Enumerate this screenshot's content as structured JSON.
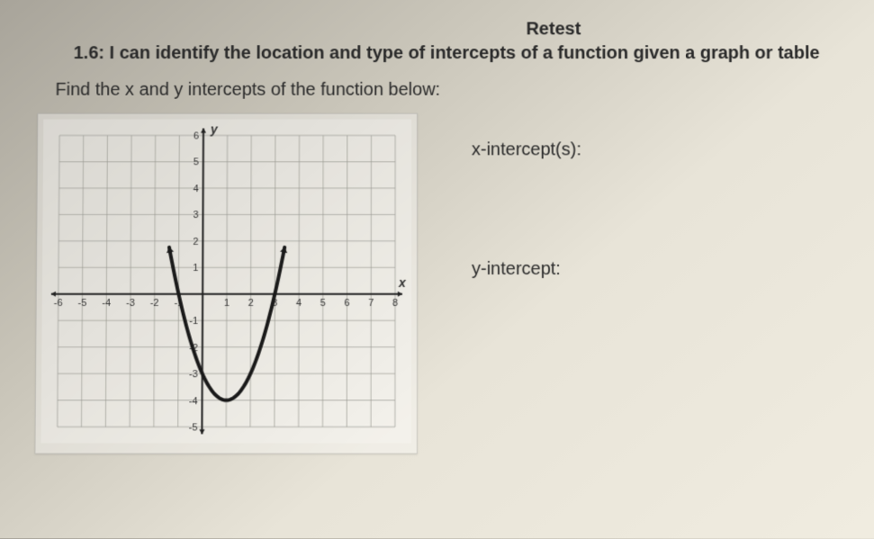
{
  "header": {
    "retest": "Retest",
    "standard": "1.6: I can identify the location and type of intercepts of a function given a graph or table",
    "prompt": "Find the x and y intercepts of the function below:"
  },
  "answers": {
    "x_label": "x-intercept(s):",
    "y_label": "y-intercept:"
  },
  "chart": {
    "type": "line",
    "background_color": "rgba(255,255,255,0.2)",
    "grid_color": "#9a9a92",
    "axis_color": "#222222",
    "curve_color": "#1a1a1a",
    "curve_width": 4,
    "xlim": [
      -6,
      8
    ],
    "ylim": [
      -5,
      6
    ],
    "xtick_step": 1,
    "ytick_step": 1,
    "x_axis_label": "x",
    "y_axis_label": "y",
    "x_tick_labels": [
      -6,
      -5,
      -4,
      -3,
      -2,
      -1,
      1,
      2,
      3,
      4,
      5,
      6,
      7,
      8
    ],
    "y_tick_labels": [
      -5,
      -4,
      -3,
      -2,
      -1,
      1,
      2,
      3,
      4,
      5,
      6
    ],
    "label_fontsize": 11,
    "axis_label_fontsize": 14,
    "parabola": {
      "vertex": [
        1,
        -4
      ],
      "a": 1,
      "x_domain": [
        -1.4,
        3.4
      ]
    },
    "axis_arrow_size": 6,
    "curve_arrow_size": 7
  }
}
